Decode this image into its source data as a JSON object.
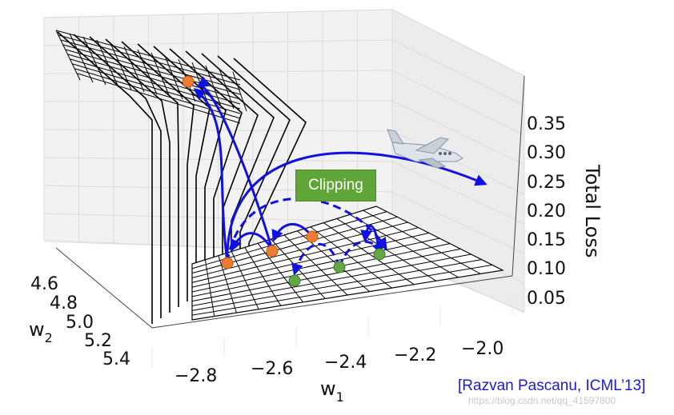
{
  "chart_data": {
    "type": "surface3d",
    "xlabel": "w",
    "xlabel_sub": "1",
    "ylabel": "w",
    "ylabel_sub": "2",
    "zlabel": "Total Loss",
    "x_ticks": [
      "−2.8",
      "−2.6",
      "−2.4",
      "−2.2",
      "−2.0"
    ],
    "y_ticks": [
      "4.6",
      "4.8",
      "5.0",
      "5.2",
      "5.4"
    ],
    "z_ticks": [
      "0.35",
      "0.30",
      "0.25",
      "0.20",
      "0.15",
      "0.10",
      "0.05"
    ],
    "grid": true,
    "annotation": "Clipping",
    "gradient_steps_orange": 4,
    "clipped_steps_green": 3
  },
  "citation": "[Razvan Pascanu, ICML’13]",
  "watermark": "https://blog.csdn.net/qq_41597800",
  "colors": {
    "arrow": "#1010e0",
    "orange": "#ee7b2f",
    "green": "#63a843",
    "label_bg": "#5fa538"
  },
  "icons": {
    "airplane": "airplane-icon"
  }
}
